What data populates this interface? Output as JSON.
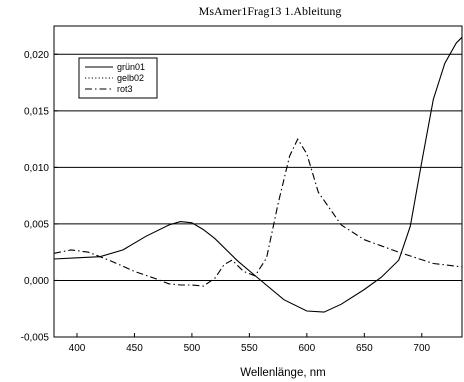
{
  "chart_data": {
    "type": "line",
    "title": "MsAmer1Frag13 1.Ableitung",
    "xlabel": "Wellenlänge, nm",
    "ylabel": "",
    "xlim": [
      380,
      735
    ],
    "ylim": [
      -0.005,
      0.0225
    ],
    "x_ticks": [
      400,
      450,
      500,
      550,
      600,
      650,
      700
    ],
    "x_tick_labels": [
      "400",
      "450",
      "500",
      "550",
      "600",
      "650",
      "700"
    ],
    "y_ticks": [
      -0.005,
      0.0,
      0.005,
      0.01,
      0.015,
      0.02
    ],
    "y_tick_labels": [
      "-0,005",
      "0,000",
      "0,005",
      "0,010",
      "0,015",
      "0,020"
    ],
    "grid": "horizontal",
    "legend_position": "top-left",
    "series": [
      {
        "name": "grün01",
        "style": "solid",
        "x": [
          380,
          400,
          420,
          440,
          460,
          480,
          490,
          500,
          510,
          520,
          540,
          560,
          580,
          600,
          615,
          630,
          650,
          665,
          680,
          690,
          700,
          710,
          720,
          730,
          735
        ],
        "y": [
          0.0019,
          0.002,
          0.0021,
          0.0027,
          0.0039,
          0.0049,
          0.0052,
          0.0051,
          0.0045,
          0.0037,
          0.0017,
          0.0,
          -0.0017,
          -0.0027,
          -0.0028,
          -0.0021,
          -0.0008,
          0.0003,
          0.0018,
          0.0048,
          0.0105,
          0.016,
          0.0192,
          0.021,
          0.0215
        ]
      },
      {
        "name": "gelb02",
        "style": "dotted",
        "x": [
          380,
          735
        ],
        "y": [
          0.0,
          0.0
        ]
      },
      {
        "name": "rot3",
        "style": "dashdot",
        "x": [
          380,
          395,
          410,
          430,
          450,
          470,
          480,
          490,
          500,
          510,
          520,
          528,
          535,
          545,
          555,
          565,
          575,
          585,
          592,
          600,
          610,
          630,
          650,
          680,
          710,
          735
        ],
        "y": [
          0.0024,
          0.0027,
          0.0025,
          0.0017,
          0.0008,
          0.0001,
          -0.0003,
          -0.0004,
          -0.0004,
          -0.0005,
          0.0002,
          0.0014,
          0.0018,
          0.0008,
          0.0004,
          0.002,
          0.0068,
          0.011,
          0.0125,
          0.0112,
          0.0078,
          0.0049,
          0.0036,
          0.0025,
          0.0015,
          0.0012
        ]
      }
    ]
  }
}
